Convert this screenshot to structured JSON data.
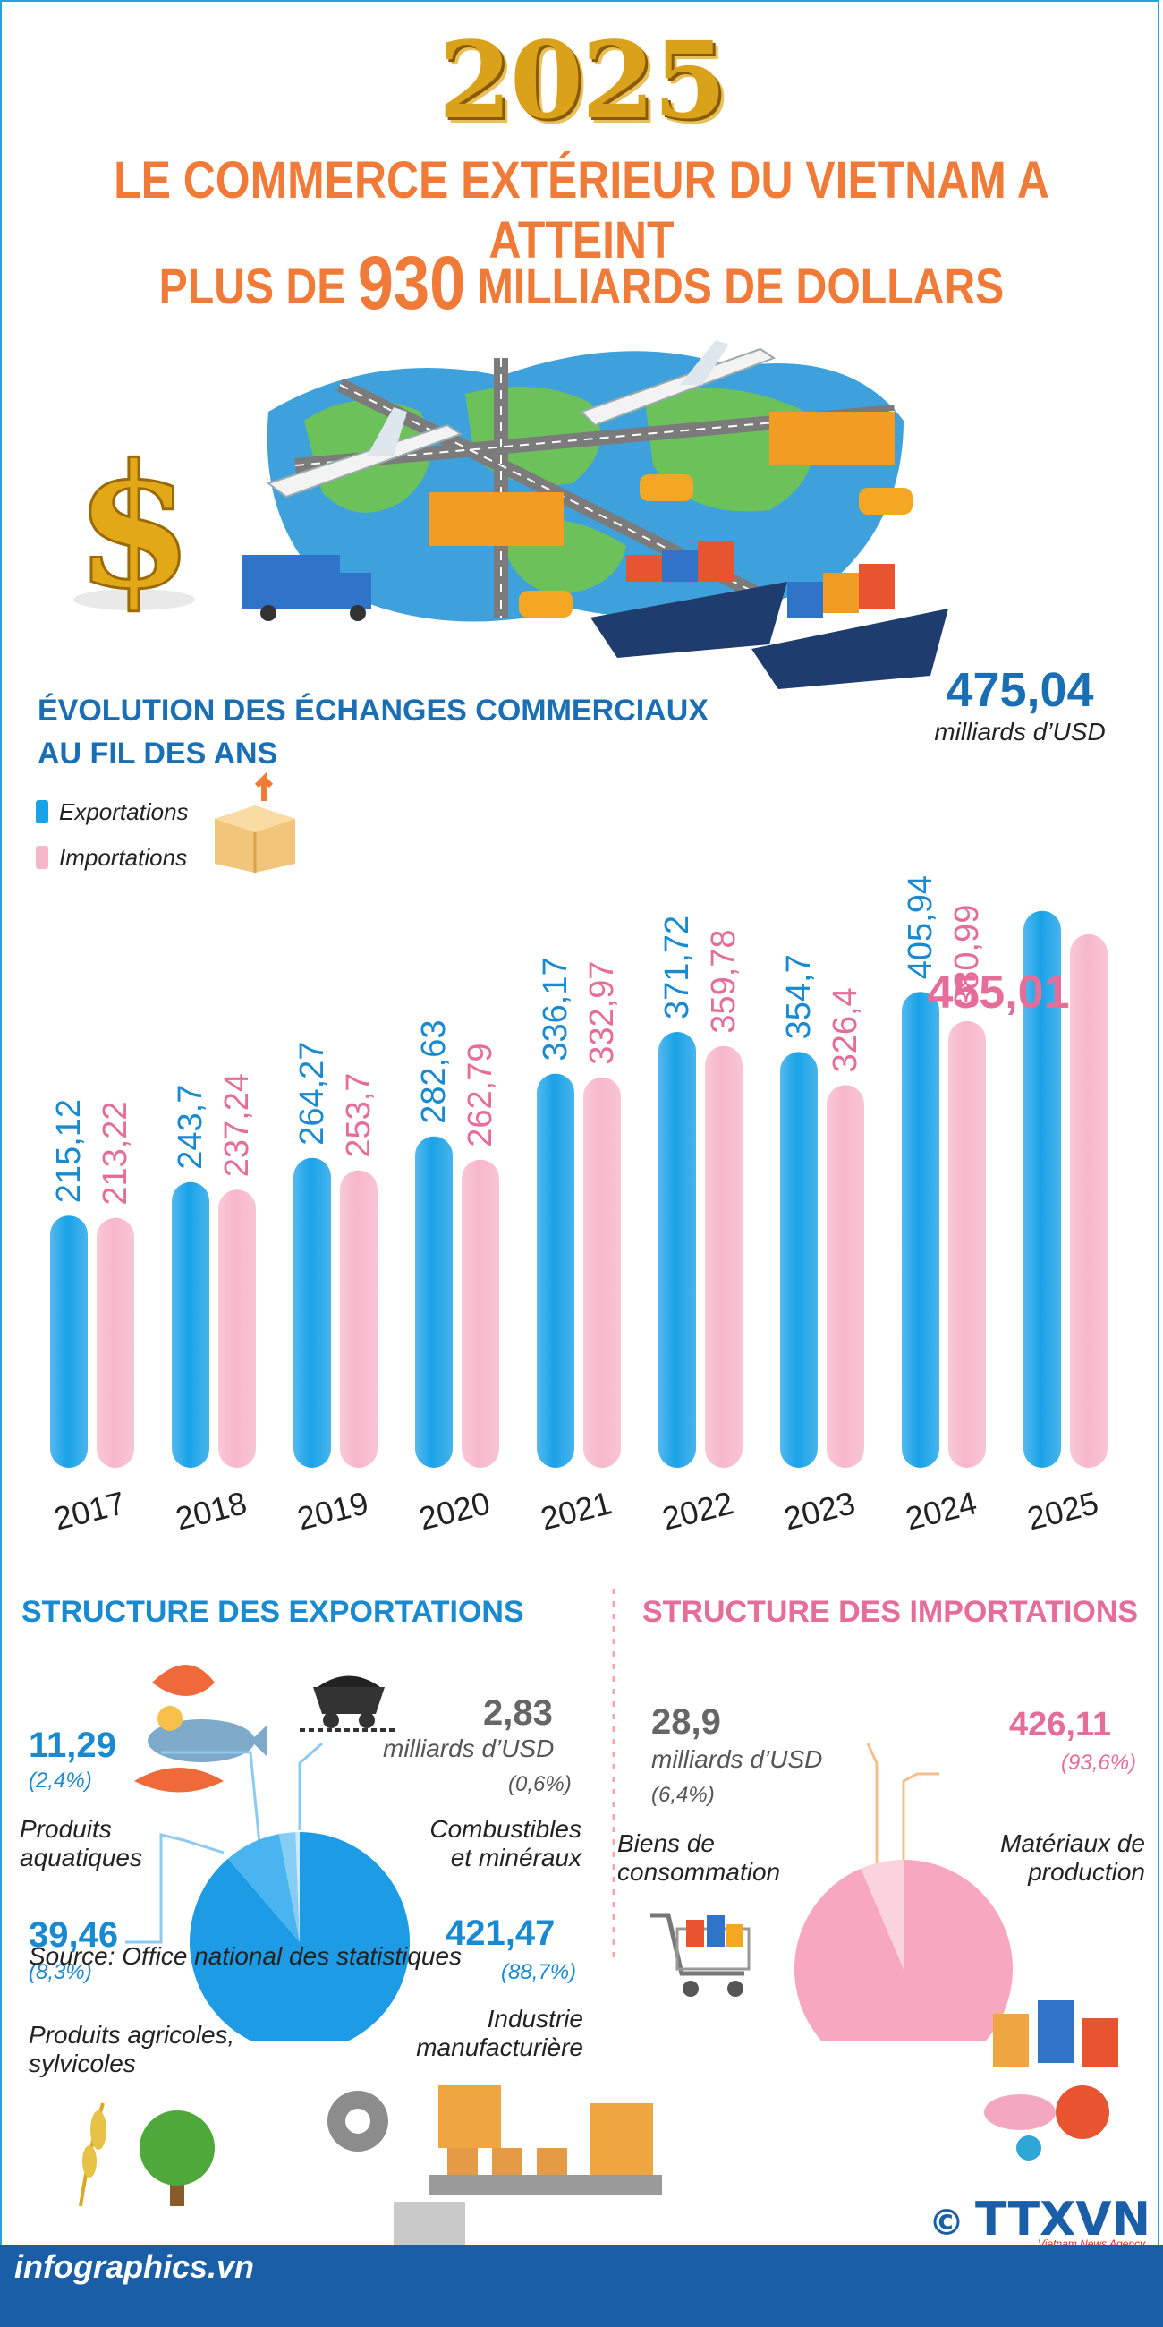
{
  "header": {
    "year": "2025",
    "line1": "LE COMMERCE EXTÉRIEUR DU VIETNAM A  ATTEINT",
    "line2_pre": "PLUS DE ",
    "line2_big": "930",
    "line2_post": " MILLIARDS DE DOLLARS"
  },
  "chart": {
    "title_line1": "ÉVOLUTION DES ÉCHANGES COMMERCIAUX",
    "title_line2": "AU FIL DES ANS",
    "legend_exports": "Exportations",
    "legend_imports": "Importations",
    "total_value": "475,04",
    "total_unit": "milliards d’USD"
  },
  "chart_data": {
    "type": "bar",
    "categories": [
      "2017",
      "2018",
      "2019",
      "2020",
      "2021",
      "2022",
      "2023",
      "2024",
      "2025"
    ],
    "series": [
      {
        "name": "Exportations",
        "color": "#1aa2e8",
        "values": [
          215.12,
          243.7,
          264.27,
          282.63,
          336.17,
          371.72,
          354.7,
          405.94,
          475.04
        ],
        "labels": [
          "215,12",
          "243,7",
          "264,27",
          "282,63",
          "336,17",
          "371,72",
          "354,7",
          "405,94",
          "475,04"
        ]
      },
      {
        "name": "Importations",
        "color": "#f7b7ca",
        "values": [
          213.22,
          237.24,
          253.7,
          262.79,
          332.97,
          359.78,
          326.4,
          380.99,
          455.01
        ],
        "labels": [
          "213,22",
          "237,24",
          "253,7",
          "262,79",
          "332,97",
          "359,78",
          "326,4",
          "380,99",
          "455,01"
        ]
      }
    ]
  },
  "exports": {
    "title": "STRUCTURE DES EXPORTATIONS",
    "seg_fuel": {
      "value": "2,83",
      "unit": "milliards d’USD",
      "pct": "(0,6%)",
      "label_l1": "Combustibles",
      "label_l2": "et minéraux"
    },
    "seg_aqua": {
      "value": "11,29",
      "pct": "(2,4%)",
      "label_l1": "Produits",
      "label_l2": "aquatiques"
    },
    "seg_agri": {
      "value": "39,46",
      "pct": "(8,3%)",
      "label_l1": "Produits agricoles,",
      "label_l2": "sylvicoles"
    },
    "seg_manu": {
      "value": "421,47",
      "pct": "(88,7%)",
      "label_l1": "Industrie",
      "label_l2": "manufacturière"
    },
    "pie": [
      {
        "share": 88.7,
        "color": "#1d9be5"
      },
      {
        "share": 8.3,
        "color": "#49b4ef"
      },
      {
        "share": 2.4,
        "color": "#86cdf5"
      },
      {
        "share": 0.6,
        "color": "#cdeafb"
      }
    ]
  },
  "imports": {
    "title": "STRUCTURE DES IMPORTATIONS",
    "seg_cons": {
      "value": "28,9",
      "unit": "milliards d’USD",
      "pct": "(6,4%)",
      "label_l1": "Biens de",
      "label_l2": "consommation"
    },
    "seg_prod": {
      "value": "426,11",
      "pct": "(93,6%)",
      "label_l1": "Matériaux de",
      "label_l2": "production"
    },
    "pie": [
      {
        "share": 93.6,
        "color": "#f7a7bf"
      },
      {
        "share": 6.4,
        "color": "#fbd3df"
      }
    ]
  },
  "footer": {
    "source": "Source: Office national des statistiques",
    "url": "infographics.vn",
    "logo": "TTXVN",
    "logo_sub": "Vietnam News Agency",
    "copyright": "©"
  }
}
